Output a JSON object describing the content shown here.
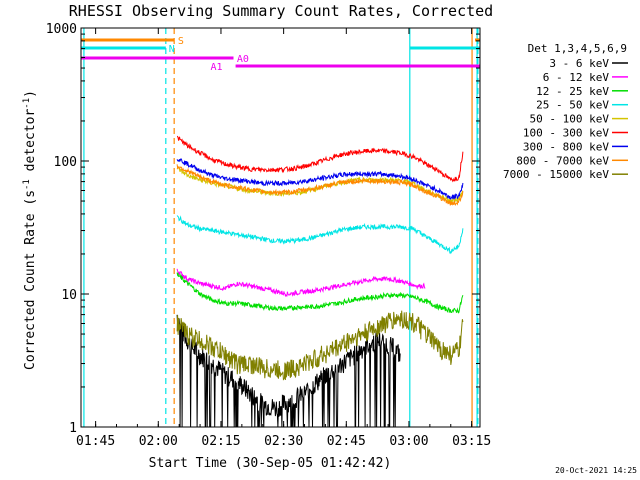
{
  "chart_data": {
    "type": "line",
    "title": "RHESSI Observing Summary Count Rates, Corrected",
    "xlabel": "Start Time (30-Sep-05 01:42:42)",
    "ylabel_main": "Corrected Count Rate (s",
    "ylabel_exp1": "-1",
    "ylabel_mid": " detector",
    "ylabel_exp2": "-1",
    "ylabel_end": ")",
    "yscale": "log",
    "ylim": [
      1,
      1000
    ],
    "xlim_minutes": [
      101.5,
      197
    ],
    "x_ticks": [
      {
        "m": 105,
        "label": "01:45"
      },
      {
        "m": 120,
        "label": "02:00"
      },
      {
        "m": 135,
        "label": "02:15"
      },
      {
        "m": 150,
        "label": "02:30"
      },
      {
        "m": 165,
        "label": "02:45"
      },
      {
        "m": 180,
        "label": "03:00"
      },
      {
        "m": 195,
        "label": "03:15"
      }
    ],
    "y_ticks": [
      {
        "v": 1,
        "label": "1"
      },
      {
        "v": 10,
        "label": "10"
      },
      {
        "v": 100,
        "label": "100"
      },
      {
        "v": 1000,
        "label": "1000"
      }
    ],
    "legend_title": "Det 1,3,4,5,6,9",
    "series": [
      {
        "name": "3 - 6 keV",
        "color": "#000000",
        "t": [
          124.5,
          126,
          128,
          130,
          133,
          136,
          139,
          142,
          145,
          148,
          150,
          152,
          155,
          158,
          161,
          164,
          167,
          170,
          173,
          176,
          178
        ],
        "v": [
          7,
          5,
          4,
          3.5,
          3,
          2.5,
          2.2,
          1.8,
          1.5,
          1.4,
          1.5,
          1.6,
          1.8,
          2.2,
          2.6,
          3,
          3.5,
          4.2,
          4.5,
          4,
          3.5
        ]
      },
      {
        "name": "6 - 12 keV",
        "color": "#ff00ff",
        "t": [
          124.5,
          127,
          130,
          133,
          136,
          139,
          142,
          145,
          148,
          151,
          154,
          157,
          160,
          163,
          166,
          169,
          172,
          175,
          178,
          180,
          182,
          184
        ],
        "v": [
          15,
          13,
          12,
          11.5,
          11,
          12,
          11.5,
          11,
          10.5,
          10,
          10.3,
          10.6,
          11,
          11.5,
          12,
          12.5,
          13,
          13,
          12.5,
          12,
          11.5,
          11.5
        ]
      },
      {
        "name": "12 - 25 keV",
        "color": "#00dd00",
        "t": [
          124.5,
          127,
          130,
          133,
          136,
          139,
          142,
          145,
          148,
          151,
          154,
          157,
          160,
          163,
          166,
          169,
          172,
          175,
          178,
          181,
          184,
          187,
          190,
          192,
          193
        ],
        "v": [
          14,
          12,
          10,
          9,
          8.5,
          8.5,
          8.3,
          8,
          7.8,
          7.8,
          8,
          8,
          8.3,
          8.5,
          9,
          9.3,
          9.5,
          9.8,
          9.8,
          9.5,
          8.8,
          8,
          7.5,
          7.5,
          10
        ]
      },
      {
        "name": "25 - 50 keV",
        "color": "#00e5e5",
        "t": [
          124.5,
          127,
          130,
          133,
          136,
          139,
          142,
          145,
          148,
          151,
          154,
          157,
          160,
          163,
          166,
          169,
          172,
          175,
          178,
          181,
          184,
          187,
          190,
          192,
          193
        ],
        "v": [
          38,
          33,
          31,
          30,
          29,
          28,
          27,
          26,
          25,
          25,
          25.5,
          26.5,
          28,
          30,
          31,
          32,
          32,
          32,
          32,
          31,
          27,
          24,
          21,
          23,
          32
        ]
      },
      {
        "name": "50 - 100 keV",
        "color": "#d4c400",
        "t": [
          124.5,
          127,
          130,
          133,
          136,
          139,
          142,
          145,
          148,
          151,
          154,
          157,
          160,
          163,
          166,
          169,
          172,
          175,
          178,
          181,
          184,
          187,
          190,
          192,
          193
        ],
        "v": [
          88,
          78,
          72,
          68,
          65,
          62,
          60,
          58,
          57,
          57,
          58,
          61,
          65,
          68,
          71,
          72,
          72,
          72,
          71,
          68,
          60,
          55,
          50,
          52,
          62
        ]
      },
      {
        "name": "100 - 300 keV",
        "color": "#ff0000",
        "t": [
          124.5,
          127,
          130,
          133,
          136,
          139,
          142,
          145,
          148,
          151,
          154,
          157,
          160,
          163,
          166,
          169,
          172,
          175,
          178,
          181,
          184,
          187,
          190,
          192,
          193
        ],
        "v": [
          150,
          130,
          115,
          102,
          95,
          90,
          87,
          86,
          86,
          87,
          89,
          95,
          102,
          110,
          115,
          118,
          120,
          118,
          115,
          108,
          95,
          85,
          72,
          75,
          120
        ]
      },
      {
        "name": "300 - 800 keV",
        "color": "#0000ee",
        "t": [
          124.5,
          127,
          130,
          133,
          136,
          139,
          142,
          145,
          148,
          151,
          154,
          157,
          160,
          163,
          166,
          169,
          172,
          175,
          178,
          181,
          184,
          187,
          190,
          192,
          193
        ],
        "v": [
          105,
          95,
          85,
          78,
          74,
          72,
          70,
          68,
          68,
          68,
          70,
          72,
          75,
          78,
          80,
          80,
          80,
          79,
          77,
          73,
          66,
          60,
          53,
          55,
          68
        ]
      },
      {
        "name": "800 - 7000 keV",
        "color": "#ff8800",
        "t": [
          124.5,
          127,
          130,
          133,
          136,
          139,
          142,
          145,
          148,
          151,
          154,
          157,
          160,
          163,
          166,
          169,
          172,
          175,
          178,
          181,
          184,
          187,
          190,
          192,
          193
        ],
        "v": [
          92,
          84,
          76,
          70,
          66,
          63,
          61,
          59,
          58,
          58,
          60,
          62,
          65,
          68,
          70,
          71,
          71,
          70,
          69,
          66,
          59,
          54,
          48,
          49,
          60
        ]
      },
      {
        "name": "7000 - 15000 keV",
        "color": "#808000",
        "t": [
          124.5,
          127,
          130,
          133,
          136,
          139,
          142,
          145,
          148,
          151,
          154,
          157,
          160,
          163,
          166,
          169,
          172,
          175,
          178,
          181,
          184,
          187,
          190,
          192,
          193
        ],
        "v": [
          6,
          5,
          4.5,
          4,
          3.5,
          3,
          3,
          2.8,
          2.7,
          2.7,
          2.9,
          3.2,
          3.6,
          4,
          4.6,
          5,
          5.6,
          6.2,
          6.6,
          6.2,
          5,
          4,
          3.5,
          3.8,
          6
        ]
      }
    ],
    "bands": [
      {
        "label": "S",
        "color": "#ff8800",
        "segments": [
          [
            101.5,
            123.8
          ],
          [
            195.8,
            197
          ]
        ],
        "y": 40,
        "label_m": 124.7
      },
      {
        "label": "N",
        "color": "#00e5e5",
        "segments": [
          [
            101.5,
            121.8
          ],
          [
            180.2,
            197
          ]
        ],
        "y": 48,
        "label_m": 122.5
      },
      {
        "label": "A0",
        "color": "#ee00ee",
        "segments": [
          [
            101.5,
            138
          ]
        ],
        "y": 58,
        "label_m": 138.8
      },
      {
        "label": "A1",
        "color": "#ee00ee",
        "segments": [
          [
            138.5,
            197
          ]
        ],
        "y": 66,
        "label_m": 132.5
      }
    ],
    "vlines": [
      {
        "m": 102.2,
        "color": "#00e5e5",
        "dash": false
      },
      {
        "m": 121.8,
        "color": "#00e5e5",
        "dash": true
      },
      {
        "m": 123.8,
        "color": "#ff8800",
        "dash": true
      },
      {
        "m": 180.2,
        "color": "#00e5e5",
        "dash": false
      },
      {
        "m": 195.1,
        "color": "#ff8800",
        "dash": false
      },
      {
        "m": 196.3,
        "color": "#00e5e5",
        "dash": false
      },
      {
        "m": 196.5,
        "color": "#00e5e5",
        "dash": true
      }
    ]
  },
  "footer_date": "20-Oct-2021 14:25"
}
